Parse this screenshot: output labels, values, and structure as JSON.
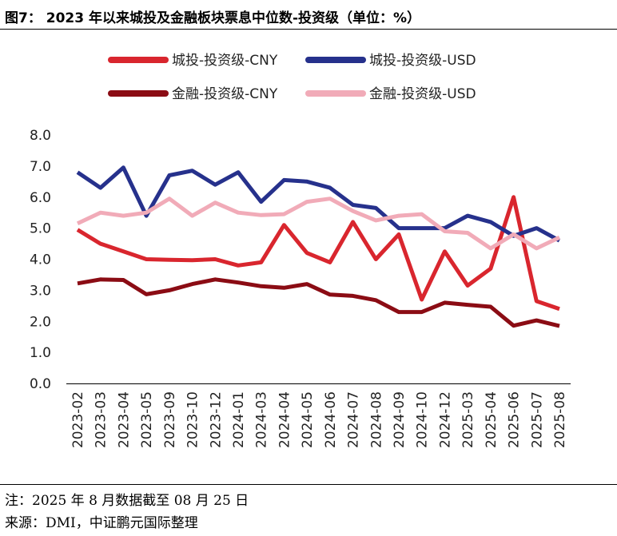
{
  "header": {
    "title": "图7： 2023 年以来城投及金融板块票息中位数-投资级（单位：%）"
  },
  "footer": {
    "note": "注：2025 年 8 月数据截至 08 月 25 日",
    "source": "来源：DMI，中证鹏元国际整理"
  },
  "chart_data": {
    "type": "line",
    "title": "图7： 2023 年以来城投及金融板块票息中位数-投资级（单位：%）",
    "xlabel": "",
    "ylabel": "",
    "ylim": [
      0,
      8
    ],
    "yticks": [
      "0.0",
      "1.0",
      "2.0",
      "3.0",
      "4.0",
      "5.0",
      "6.0",
      "7.0",
      "8.0"
    ],
    "grid": false,
    "legend_position": "top",
    "categories": [
      "2023-02",
      "2023-03",
      "2023-04",
      "2023-05",
      "2023-09",
      "2023-10",
      "2023-12",
      "2024-01",
      "2024-03",
      "2024-04",
      "2024-05",
      "2024-06",
      "2024-07",
      "2024-08",
      "2024-09",
      "2024-10",
      "2024-12",
      "2025-03",
      "2025-04",
      "2025-06",
      "2025-07",
      "2025-08"
    ],
    "series": [
      {
        "name": "城投-投资级-CNY",
        "color": "#D9262E",
        "values": [
          4.95,
          4.5,
          4.25,
          4.0,
          3.98,
          3.97,
          4.0,
          3.8,
          3.9,
          5.1,
          4.2,
          3.9,
          5.2,
          4.0,
          4.8,
          2.7,
          4.25,
          3.15,
          3.7,
          6.0,
          2.65,
          2.4
        ]
      },
      {
        "name": "城投-投资级-USD",
        "color": "#26318C",
        "values": [
          6.8,
          6.3,
          6.95,
          5.4,
          6.7,
          6.85,
          6.4,
          6.8,
          5.85,
          6.55,
          6.5,
          6.3,
          5.75,
          5.65,
          5.0,
          5.0,
          5.0,
          5.4,
          5.2,
          4.75,
          5.0,
          4.6
        ]
      },
      {
        "name": "金融-投资级-CNY",
        "color": "#8B0C14",
        "values": [
          3.22,
          3.35,
          3.33,
          2.87,
          3.0,
          3.2,
          3.35,
          3.25,
          3.13,
          3.08,
          3.2,
          2.86,
          2.82,
          2.68,
          2.3,
          2.3,
          2.6,
          2.53,
          2.47,
          1.86,
          2.03,
          1.85
        ]
      },
      {
        "name": "金融-投资级-USD",
        "color": "#F1ABB8",
        "values": [
          5.15,
          5.5,
          5.4,
          5.5,
          5.95,
          5.4,
          5.82,
          5.5,
          5.42,
          5.45,
          5.85,
          5.95,
          5.55,
          5.25,
          5.4,
          5.45,
          4.9,
          4.85,
          4.35,
          4.8,
          4.35,
          4.7
        ]
      }
    ]
  }
}
